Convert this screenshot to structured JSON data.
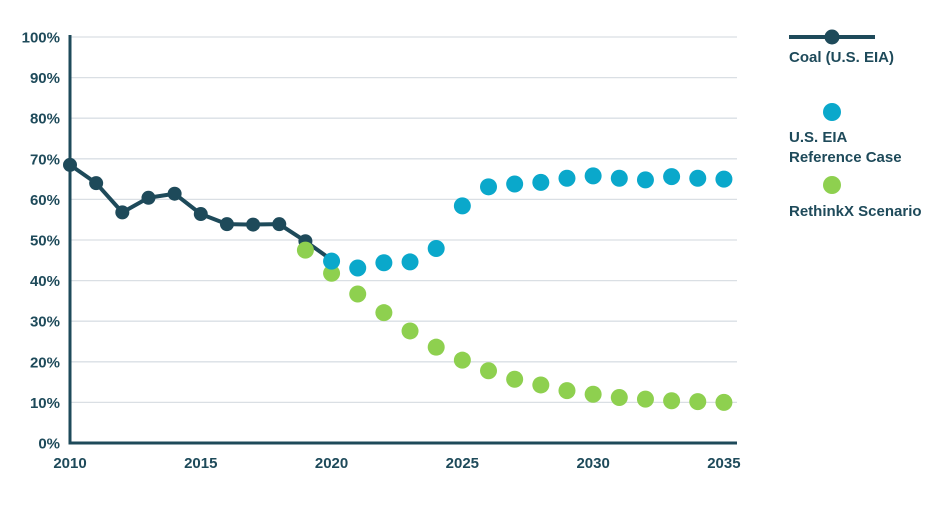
{
  "chart_data": {
    "type": "line",
    "title": "",
    "xlabel": "",
    "ylabel": "",
    "xlim": [
      2010,
      2035.5
    ],
    "ylim": [
      0,
      100
    ],
    "grid": "horizontal",
    "legend_position": "right",
    "x_ticks": [
      2010,
      2015,
      2020,
      2025,
      2030,
      2035
    ],
    "y_tick_values": [
      0,
      10,
      20,
      30,
      40,
      50,
      60,
      70,
      80,
      90,
      100
    ],
    "y_tick_labels": [
      "0%",
      "10%",
      "20%",
      "30%",
      "40%",
      "50%",
      "60%",
      "70%",
      "80%",
      "90%",
      "100%"
    ],
    "series": [
      {
        "name": "Coal (U.S. EIA)",
        "style": "line+markers",
        "color": "#1e4a5a",
        "x": [
          2010,
          2011,
          2012,
          2013,
          2014,
          2015,
          2016,
          2017,
          2018,
          2019,
          2020
        ],
        "values": [
          68.5,
          64.0,
          56.8,
          60.4,
          61.4,
          56.4,
          53.9,
          53.8,
          53.9,
          49.7,
          45.1
        ]
      },
      {
        "name": "RethinkX Scenario",
        "style": "markers",
        "color": "#8ed04f",
        "x": [
          2019,
          2020,
          2021,
          2022,
          2023,
          2024,
          2025,
          2026,
          2027,
          2028,
          2029,
          2030,
          2031,
          2032,
          2033,
          2034,
          2035
        ],
        "values": [
          47.5,
          41.8,
          36.7,
          32.1,
          27.6,
          23.6,
          20.4,
          17.8,
          15.7,
          14.3,
          12.9,
          12.0,
          11.2,
          10.8,
          10.4,
          10.2,
          10.0
        ]
      },
      {
        "name": "U.S. EIA Reference Case",
        "style": "markers",
        "color": "#0aa8cb",
        "x": [
          2020,
          2021,
          2022,
          2023,
          2024,
          2025,
          2026,
          2027,
          2028,
          2029,
          2030,
          2031,
          2032,
          2033,
          2034,
          2035
        ],
        "values": [
          44.8,
          43.1,
          44.4,
          44.6,
          47.9,
          58.4,
          63.1,
          63.8,
          64.2,
          65.2,
          65.8,
          65.2,
          64.8,
          65.6,
          65.2,
          65.0
        ]
      }
    ]
  },
  "legend": {
    "items": [
      {
        "line1": "Coal (U.S. EIA)",
        "line2": ""
      },
      {
        "line1": "U.S. EIA",
        "line2": "Reference Case"
      },
      {
        "line1": "RethinkX Scenario",
        "line2": ""
      }
    ]
  },
  "colors": {
    "navy": "#1e4a5a",
    "cyan": "#0aa8cb",
    "green": "#8ed04f",
    "gridline": "#dadfe4",
    "text": "#1e4a5a",
    "background": "#ffffff"
  }
}
